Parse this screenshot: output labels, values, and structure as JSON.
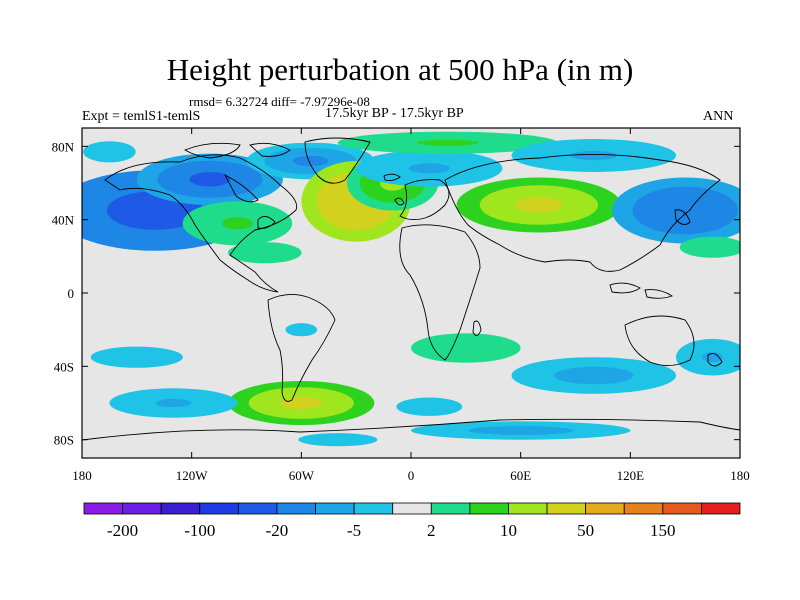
{
  "header": {
    "title": "Height perturbation at 500 hPa (in m)",
    "stats": "rmsd= 6.32724  diff= -7.97296e-08",
    "experiment": "Expt = temlS1-temlS",
    "period": "17.5kyr BP - 17.5kyr BP",
    "season": "ANN"
  },
  "chart_data": {
    "type": "heatmap",
    "title": "Height perturbation at 500 hPa (in m)",
    "subtitle": "17.5kyr BP - 17.5kyr BP",
    "xlim": [
      -180,
      180
    ],
    "ylim": [
      -90,
      90
    ],
    "x_ticks": [
      {
        "value": -180,
        "label": "180"
      },
      {
        "value": -120,
        "label": "120W"
      },
      {
        "value": -60,
        "label": "60W"
      },
      {
        "value": 0,
        "label": "0"
      },
      {
        "value": 60,
        "label": "60E"
      },
      {
        "value": 120,
        "label": "120E"
      },
      {
        "value": 180,
        "label": "180"
      }
    ],
    "y_ticks": [
      {
        "value": 80,
        "label": "80N"
      },
      {
        "value": 40,
        "label": "40N"
      },
      {
        "value": 0,
        "label": "0"
      },
      {
        "value": -40,
        "label": "40S"
      },
      {
        "value": -80,
        "label": "80S"
      }
    ],
    "colorbar": {
      "colors": [
        "#8a1ee6",
        "#6a1ee6",
        "#3a1ed2",
        "#1e3ce6",
        "#1e5ae6",
        "#1e87e6",
        "#1ea5e6",
        "#1ec3e6",
        "#e6e6e6",
        "#1edc8c",
        "#2dd21e",
        "#a0e61e",
        "#d2d21e",
        "#e6aa1e",
        "#e6821e",
        "#e6581e",
        "#e61e1e"
      ],
      "tick_labels": [
        "-200",
        "-100",
        "-20",
        "-5",
        "2",
        "10",
        "50",
        "150"
      ],
      "levels": [
        -200,
        -150,
        -100,
        -50,
        -20,
        -10,
        -5,
        -2,
        2,
        5,
        10,
        20,
        50,
        100,
        150,
        200
      ]
    },
    "anomalies": [
      {
        "lon": -140,
        "lat": 45,
        "value": -30,
        "lonR": 55,
        "latR": 22
      },
      {
        "lon": -110,
        "lat": 62,
        "value": -22,
        "lonR": 40,
        "latR": 14
      },
      {
        "lon": -55,
        "lat": 72,
        "value": -12,
        "lonR": 35,
        "latR": 10
      },
      {
        "lon": -95,
        "lat": 38,
        "value": 6,
        "lonR": 30,
        "latR": 12
      },
      {
        "lon": -80,
        "lat": 22,
        "value": 4,
        "lonR": 28,
        "latR": 8
      },
      {
        "lon": -30,
        "lat": 50,
        "value": 35,
        "lonR": 30,
        "latR": 22
      },
      {
        "lon": -10,
        "lat": 60,
        "value": 12,
        "lonR": 25,
        "latR": 15
      },
      {
        "lon": 10,
        "lat": 68,
        "value": -6,
        "lonR": 40,
        "latR": 10
      },
      {
        "lon": 20,
        "lat": 82,
        "value": 6,
        "lonR": 60,
        "latR": 6
      },
      {
        "lon": 70,
        "lat": 48,
        "value": 22,
        "lonR": 45,
        "latR": 15
      },
      {
        "lon": 100,
        "lat": 75,
        "value": -6,
        "lonR": 45,
        "latR": 9
      },
      {
        "lon": 150,
        "lat": 45,
        "value": -18,
        "lonR": 40,
        "latR": 18
      },
      {
        "lon": 165,
        "lat": 25,
        "value": 4,
        "lonR": 25,
        "latR": 8
      },
      {
        "lon": -165,
        "lat": 77,
        "value": -5,
        "lonR": 20,
        "latR": 8
      },
      {
        "lon": -150,
        "lat": -35,
        "value": -5,
        "lonR": 35,
        "latR": 8
      },
      {
        "lon": -60,
        "lat": -20,
        "value": -4,
        "lonR": 12,
        "latR": 5
      },
      {
        "lon": -60,
        "lat": -60,
        "value": 22,
        "lonR": 40,
        "latR": 12
      },
      {
        "lon": -130,
        "lat": -60,
        "value": -6,
        "lonR": 35,
        "latR": 8
      },
      {
        "lon": 10,
        "lat": -62,
        "value": -5,
        "lonR": 25,
        "latR": 7
      },
      {
        "lon": 30,
        "lat": -30,
        "value": 5,
        "lonR": 30,
        "latR": 8
      },
      {
        "lon": 100,
        "lat": -45,
        "value": -8,
        "lonR": 45,
        "latR": 10
      },
      {
        "lon": 165,
        "lat": -35,
        "value": -6,
        "lonR": 20,
        "latR": 10
      },
      {
        "lon": 60,
        "lat": -75,
        "value": -7,
        "lonR": 60,
        "latR": 5
      },
      {
        "lon": -40,
        "lat": -80,
        "value": -5,
        "lonR": 30,
        "latR": 5
      }
    ]
  }
}
